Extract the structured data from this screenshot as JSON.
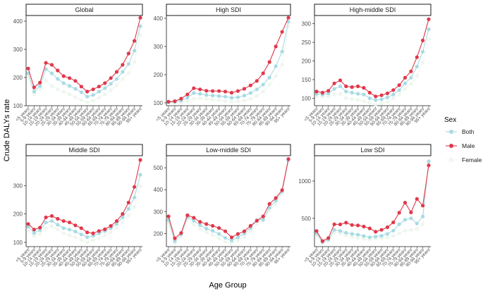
{
  "chart_data": {
    "type": "line",
    "ylabel": "Crude DALYs rate",
    "xlabel": "Age Group",
    "legend": {
      "title": "Sex",
      "position": "right",
      "entries": [
        {
          "name": "Both",
          "color": "#a8dbe3"
        },
        {
          "name": "Male",
          "color": "#e0384a"
        },
        {
          "name": "Female",
          "color": "#eef6ee"
        }
      ]
    },
    "categories": [
      "<5 years",
      "5-9 years",
      "10-14 years",
      "15-19 years",
      "20-24 years",
      "25-29 years",
      "30-34 years",
      "35-39 years",
      "40-44 years",
      "45-49 years",
      "50-54 years",
      "55-59 years",
      "60-64 years",
      "65-69 years",
      "70-74 years",
      "75-79 years",
      "80-84 years",
      "85-89 years",
      "90-94 years",
      "95+ years"
    ],
    "facets": [
      {
        "title": "Global",
        "ylim": [
          100,
          420
        ],
        "yticks": [
          100,
          200,
          300,
          400
        ],
        "series": [
          {
            "name": "Both",
            "values": [
              215,
              150,
              170,
              230,
              215,
              195,
              180,
              170,
              160,
              148,
              132,
              138,
              150,
              162,
              178,
              195,
              220,
              248,
              295,
              382
            ]
          },
          {
            "name": "Male",
            "values": [
              232,
              165,
              182,
              252,
              245,
              225,
              205,
              198,
              188,
              168,
              150,
              158,
              168,
              180,
              198,
              220,
              245,
              285,
              330,
              412
            ]
          },
          {
            "name": "Female",
            "values": [
              200,
              140,
              158,
              190,
              170,
              158,
              150,
              140,
              130,
              120,
              112,
              118,
              128,
              140,
              155,
              172,
              195,
              215,
              255,
              352
            ]
          }
        ]
      },
      {
        "title": "High SDI",
        "ylim": [
          90,
          410
        ],
        "yticks": [
          100,
          200,
          300,
          400
        ],
        "series": [
          {
            "name": "Both",
            "values": [
              102,
              103,
              108,
              118,
              135,
              132,
              128,
              126,
              124,
              122,
              118,
              120,
              126,
              135,
              148,
              165,
              190,
              230,
              282,
              388
            ]
          },
          {
            "name": "Male",
            "values": [
              104,
              106,
              115,
              130,
              152,
              148,
              143,
              142,
              142,
              140,
              136,
              142,
              150,
              162,
              178,
              205,
              245,
              300,
              352,
              402
            ]
          },
          {
            "name": "Female",
            "values": [
              100,
              100,
              102,
              106,
              115,
              116,
              114,
              112,
              110,
              106,
              104,
              105,
              108,
              115,
              125,
              140,
              165,
              195,
              235,
              372
            ]
          }
        ]
      },
      {
        "title": "High-middle SDI",
        "ylim": [
          80,
          322
        ],
        "yticks": [
          100,
          150,
          200,
          250,
          300
        ],
        "series": [
          {
            "name": "Both",
            "values": [
              112,
              110,
              113,
              125,
              132,
              118,
              115,
              112,
              110,
              100,
              95,
              97,
              102,
              110,
              122,
              140,
              155,
              185,
              225,
              285
            ]
          },
          {
            "name": "Male",
            "values": [
              118,
              115,
              120,
              140,
              148,
              132,
              130,
              132,
              128,
              115,
              105,
              108,
              113,
              122,
              135,
              155,
              172,
              210,
              255,
              312
            ]
          },
          {
            "name": "Female",
            "values": [
              105,
              105,
              105,
              110,
              112,
              100,
              98,
              96,
              92,
              88,
              82,
              86,
              90,
              100,
              110,
              125,
              138,
              160,
              195,
              258
            ]
          }
        ]
      },
      {
        "title": "Middle SDI",
        "ylim": [
          85,
          405
        ],
        "yticks": [
          100,
          200,
          300
        ],
        "series": [
          {
            "name": "Both",
            "values": [
              155,
              133,
              143,
              170,
              175,
              162,
              150,
              145,
              138,
              128,
              118,
              123,
              132,
              140,
              150,
              165,
              188,
              218,
              258,
              338
            ]
          },
          {
            "name": "Male",
            "values": [
              165,
              145,
              152,
              188,
              193,
              183,
              175,
              170,
              160,
              150,
              135,
              132,
              140,
              146,
              158,
              175,
              200,
              240,
              295,
              390
            ]
          },
          {
            "name": "Female",
            "values": [
              140,
              122,
              130,
              150,
              158,
              146,
              132,
              125,
              118,
              108,
              100,
              108,
              115,
              125,
              135,
              150,
              170,
              195,
              225,
              298
            ]
          }
        ]
      },
      {
        "title": "Low-middle SDI",
        "ylim": [
          140,
          555
        ],
        "yticks": [
          200,
          300,
          400,
          500
        ],
        "series": [
          {
            "name": "Both",
            "values": [
              262,
              165,
              196,
              275,
              258,
              238,
              222,
              212,
              198,
              180,
              168,
              182,
              200,
              225,
              262,
              262,
              318,
              350,
              392,
              535
            ]
          },
          {
            "name": "Male",
            "values": [
              278,
              178,
              202,
              283,
              272,
              253,
              243,
              235,
              225,
              210,
              182,
              198,
              210,
              235,
              258,
              278,
              335,
              362,
              398,
              540
            ]
          },
          {
            "name": "Female",
            "values": [
              250,
              155,
              188,
              262,
              240,
              220,
              205,
              192,
              178,
              162,
              155,
              168,
              185,
              210,
              245,
              270,
              305,
              335,
              382,
              530
            ]
          }
        ]
      },
      {
        "title": "Low SDI",
        "ylim": [
          120,
          1340
        ],
        "yticks": [
          500,
          1000
        ],
        "series": [
          {
            "name": "Both",
            "values": [
              300,
              180,
              215,
              345,
              330,
              305,
              290,
              280,
              262,
              245,
              255,
              265,
              290,
              335,
              420,
              480,
              500,
              430,
              525,
              1265
            ]
          },
          {
            "name": "Male",
            "values": [
              330,
              195,
              235,
              420,
              418,
              442,
              410,
              405,
              390,
              365,
              320,
              345,
              380,
              445,
              575,
              710,
              580,
              760,
              670,
              1210
            ]
          },
          {
            "name": "Female",
            "values": [
              275,
              165,
              200,
              310,
              295,
              270,
              250,
              235,
              225,
              215,
              230,
              235,
              240,
              265,
              300,
              335,
              345,
              360,
              420,
              1250
            ]
          }
        ]
      }
    ]
  }
}
